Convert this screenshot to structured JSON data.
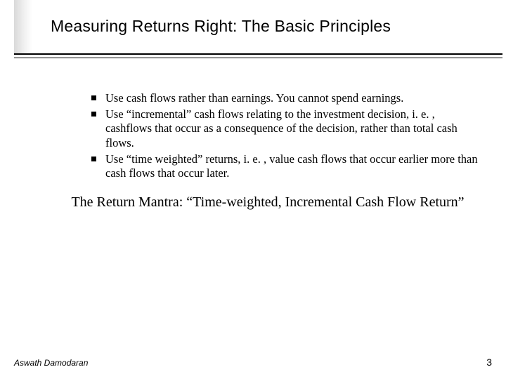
{
  "colors": {
    "background": "#ffffff",
    "text": "#000000",
    "rule": "#000000",
    "side_shadow_start": "#d9d9d9",
    "side_shadow_end": "#ffffff"
  },
  "typography": {
    "title_font": "Arial",
    "title_size_pt": 17,
    "body_font": "Times New Roman",
    "body_size_pt": 12,
    "mantra_size_pt": 15,
    "footer_size_pt": 9
  },
  "title": "Measuring Returns Right: The Basic Principles",
  "bullets": [
    "Use cash flows rather than earnings. You cannot spend earnings.",
    "Use “incremental” cash flows relating to the investment decision, i. e. , cashflows that occur as a consequence of the decision, rather than total cash flows.",
    "Use “time weighted” returns, i. e. , value cash flows that occur earlier more than cash flows that occur later."
  ],
  "mantra": "The Return Mantra: “Time-weighted, Incremental Cash Flow Return”",
  "footer": {
    "author": "Aswath Damodaran",
    "page": "3"
  }
}
